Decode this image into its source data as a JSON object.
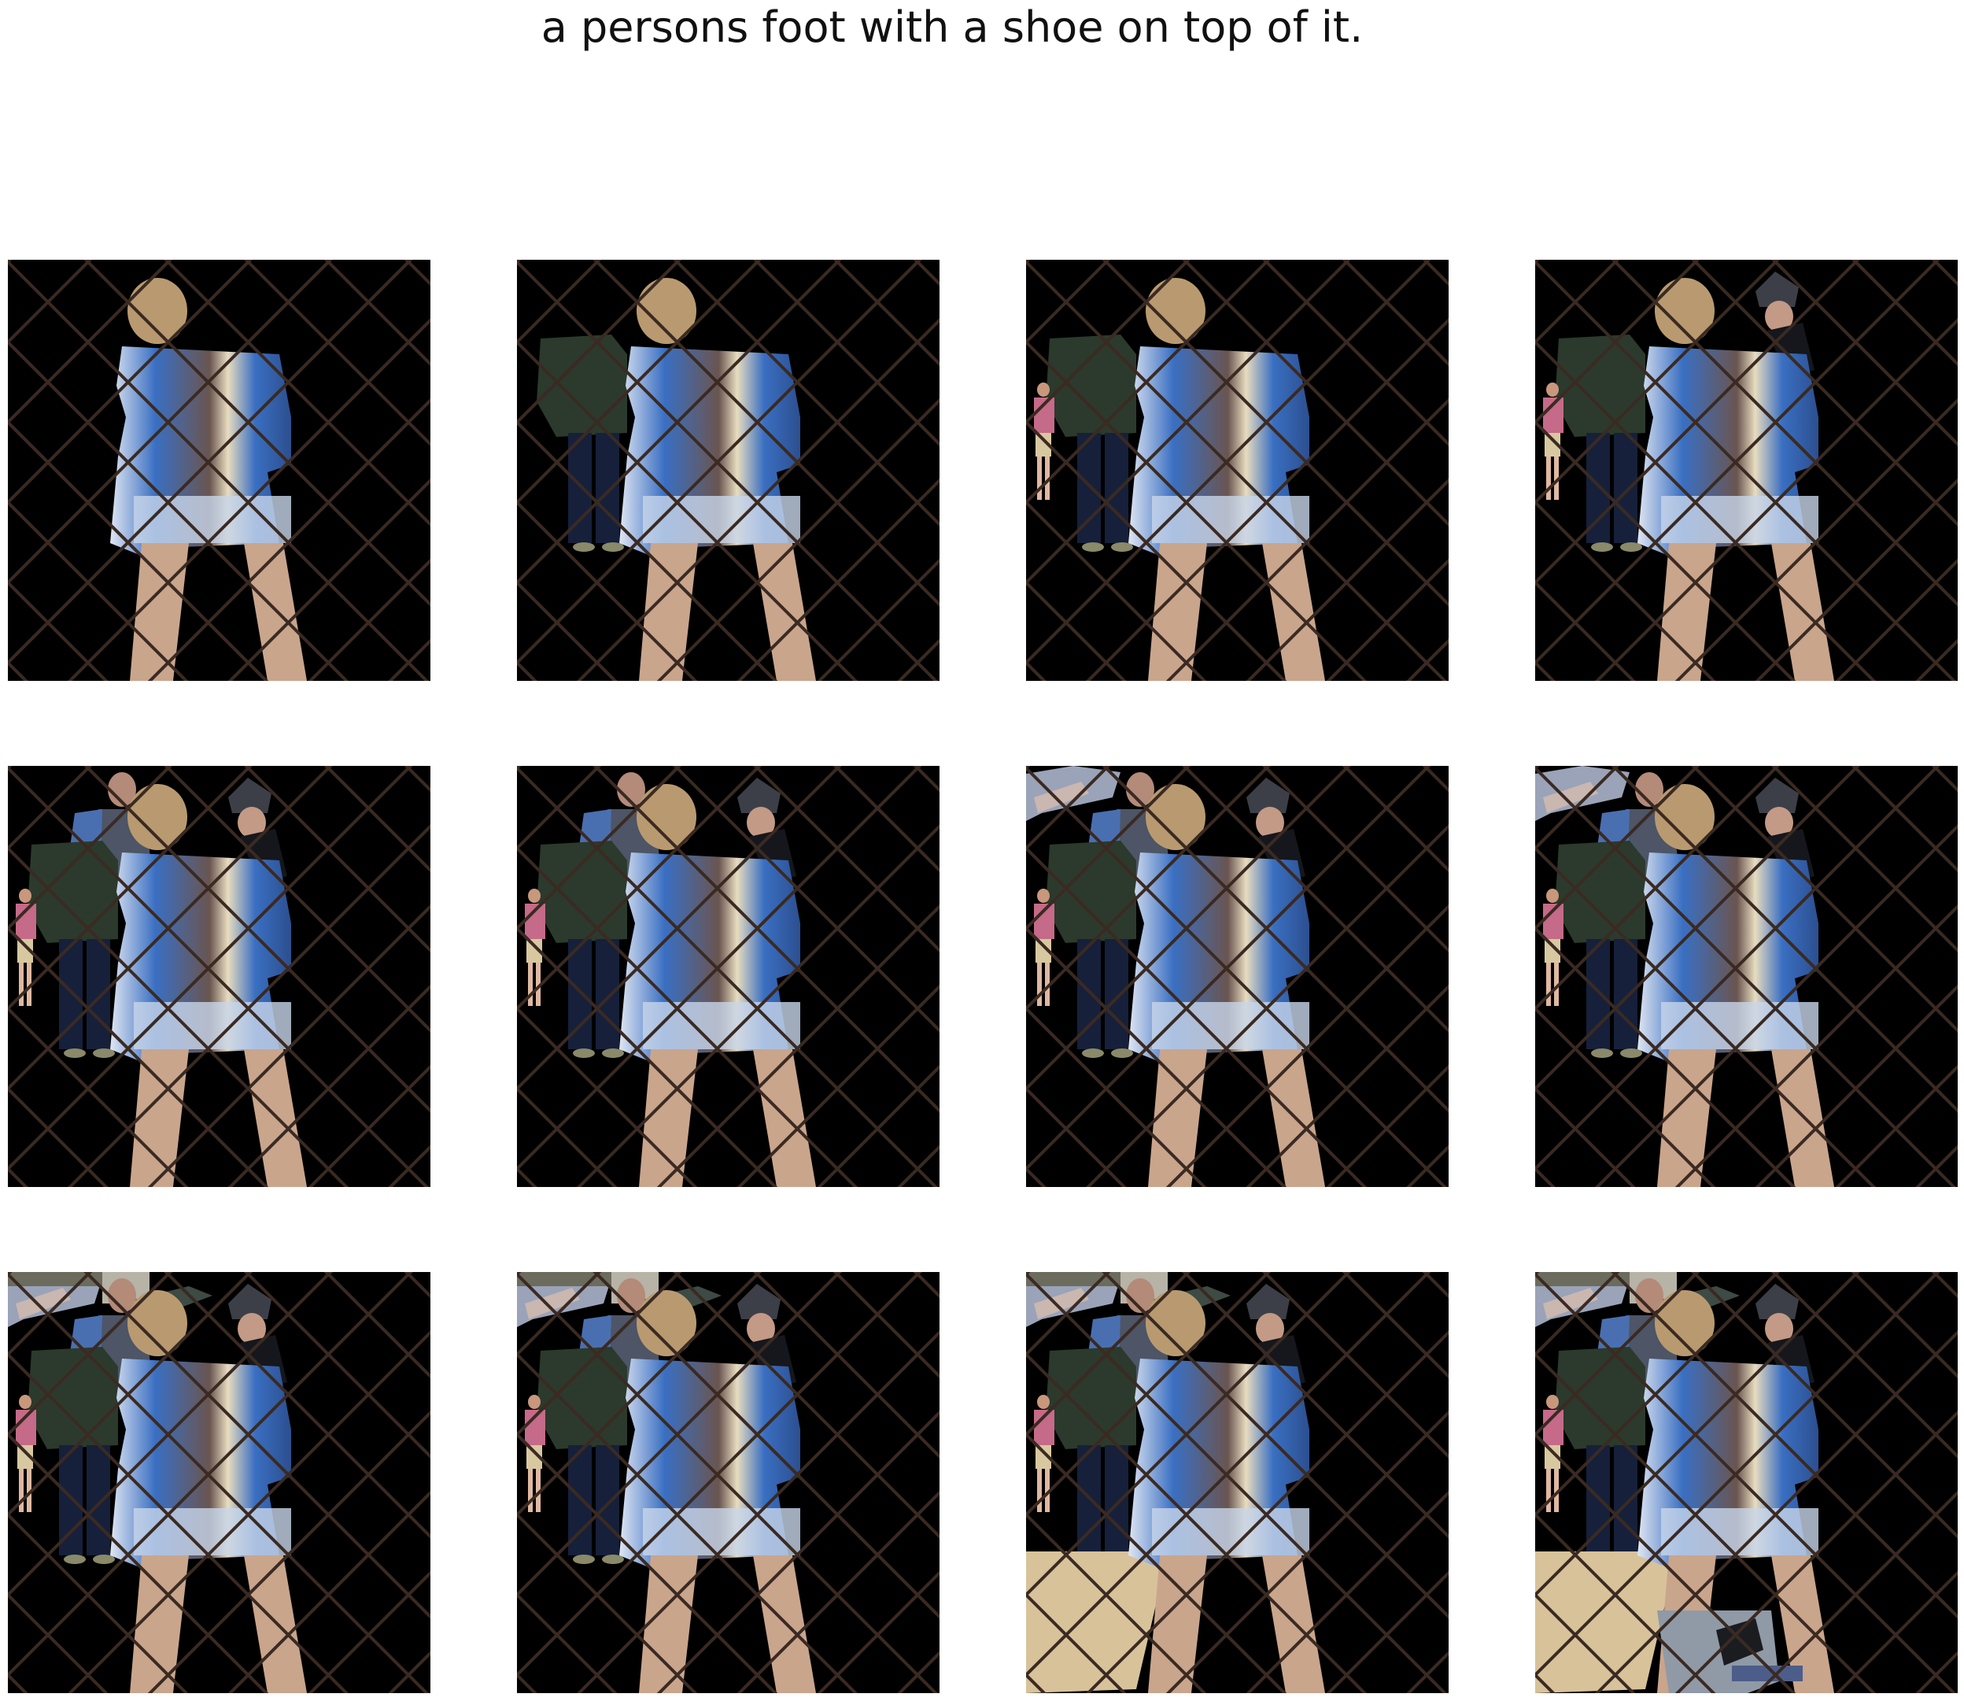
{
  "title": "a persons foot with a shoe on top of it.",
  "colors": {
    "background": "#ffffff",
    "mask": "#000000",
    "shirt_blue": "#3a6fc2",
    "skin": "#c9a58c",
    "hair": "#b99a70",
    "dark_jacket": "#2b3a2c",
    "pink_shirt": "#c56a88",
    "sand": "#d8c29a",
    "fence": "#3a2a22"
  },
  "grid": {
    "rows": 3,
    "cols": 4
  },
  "tiles": [
    {
      "layers": {
        "jacket_man": false,
        "small_pink": false,
        "police_hat": false,
        "top_people": false,
        "top_strip": false,
        "top_blur": false,
        "sand": false,
        "court": false
      }
    },
    {
      "layers": {
        "jacket_man": true,
        "small_pink": false,
        "police_hat": false,
        "top_people": false,
        "top_strip": false,
        "top_blur": false,
        "sand": false,
        "court": false
      }
    },
    {
      "layers": {
        "jacket_man": true,
        "small_pink": true,
        "police_hat": false,
        "top_people": false,
        "top_strip": false,
        "top_blur": false,
        "sand": false,
        "court": false
      }
    },
    {
      "layers": {
        "jacket_man": true,
        "small_pink": true,
        "police_hat": true,
        "top_people": false,
        "top_strip": false,
        "top_blur": false,
        "sand": false,
        "court": false
      }
    },
    {
      "layers": {
        "jacket_man": true,
        "small_pink": true,
        "police_hat": true,
        "top_people": true,
        "top_strip": false,
        "top_blur": false,
        "sand": false,
        "court": false
      }
    },
    {
      "layers": {
        "jacket_man": true,
        "small_pink": true,
        "police_hat": true,
        "top_people": true,
        "top_strip": false,
        "top_blur": false,
        "sand": false,
        "court": false
      }
    },
    {
      "layers": {
        "jacket_man": true,
        "small_pink": true,
        "police_hat": true,
        "top_people": true,
        "top_strip": true,
        "top_blur": false,
        "sand": false,
        "court": false
      }
    },
    {
      "layers": {
        "jacket_man": true,
        "small_pink": true,
        "police_hat": true,
        "top_people": true,
        "top_strip": true,
        "top_blur": false,
        "sand": false,
        "court": false
      }
    },
    {
      "layers": {
        "jacket_man": true,
        "small_pink": true,
        "police_hat": true,
        "top_people": true,
        "top_strip": true,
        "top_blur": true,
        "sand": false,
        "court": false
      }
    },
    {
      "layers": {
        "jacket_man": true,
        "small_pink": true,
        "police_hat": true,
        "top_people": true,
        "top_strip": true,
        "top_blur": true,
        "sand": false,
        "court": false
      }
    },
    {
      "layers": {
        "jacket_man": true,
        "small_pink": true,
        "police_hat": true,
        "top_people": true,
        "top_strip": true,
        "top_blur": true,
        "sand": true,
        "court": false
      }
    },
    {
      "layers": {
        "jacket_man": true,
        "small_pink": true,
        "police_hat": true,
        "top_people": true,
        "top_strip": true,
        "top_blur": true,
        "sand": true,
        "court": true
      }
    }
  ]
}
